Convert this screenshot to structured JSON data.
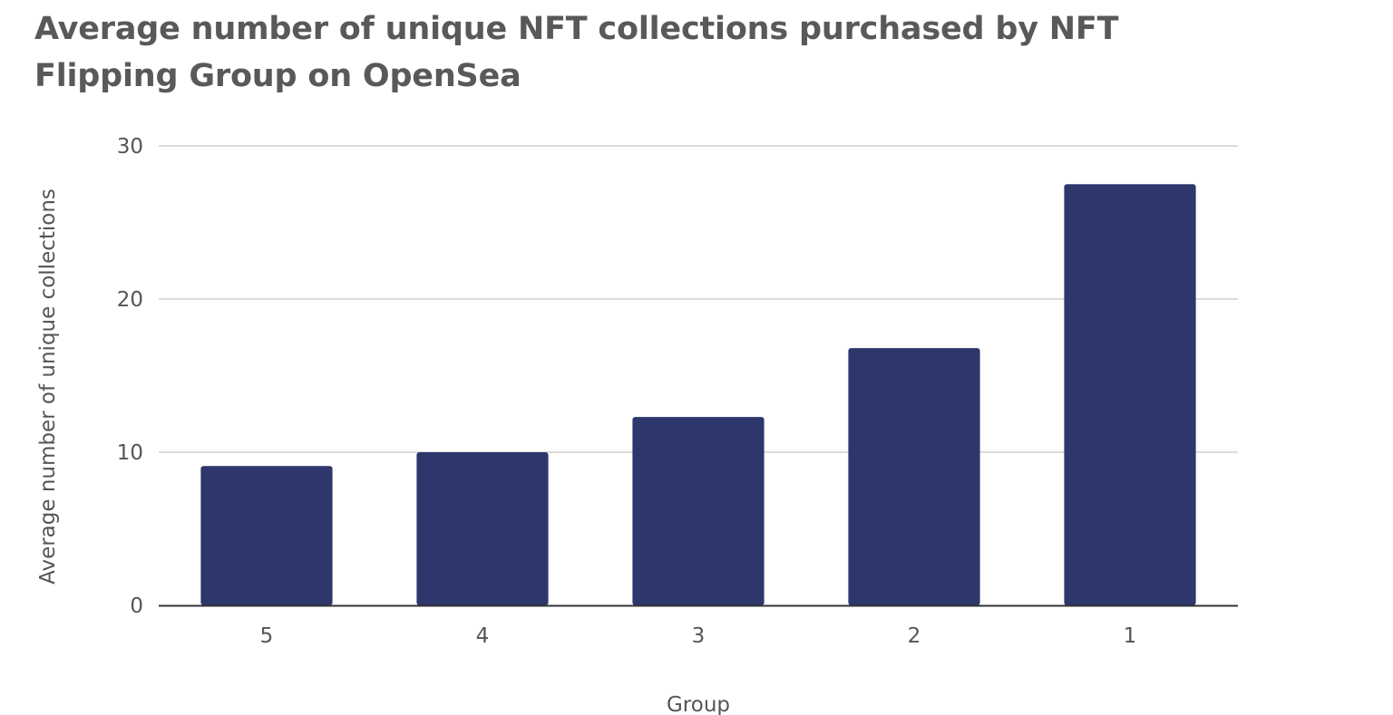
{
  "chart_data": {
    "type": "bar",
    "title": "Average number of unique NFT collections purchased by NFT Flipping Group on OpenSea",
    "xlabel": "Group",
    "ylabel": "Average number of unique collections",
    "categories": [
      "5",
      "4",
      "3",
      "2",
      "1"
    ],
    "values": [
      9.1,
      10.0,
      12.3,
      16.8,
      27.5
    ],
    "ylim": [
      0,
      30
    ],
    "yticks": [
      0,
      10,
      20,
      30
    ],
    "grid": true,
    "legend": "none",
    "colors": {
      "bar": "#2d376b",
      "grid": "#d0d0d0",
      "axis": "#333333",
      "text": "#555555",
      "title": "#595959"
    }
  }
}
